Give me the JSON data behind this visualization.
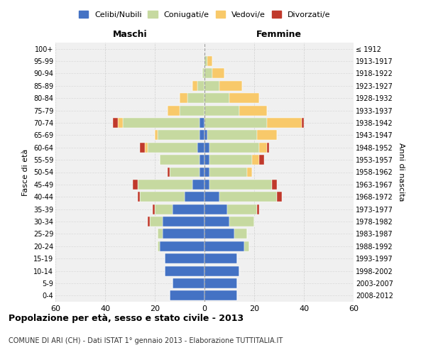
{
  "age_groups": [
    "0-4",
    "5-9",
    "10-14",
    "15-19",
    "20-24",
    "25-29",
    "30-34",
    "35-39",
    "40-44",
    "45-49",
    "50-54",
    "55-59",
    "60-64",
    "65-69",
    "70-74",
    "75-79",
    "80-84",
    "85-89",
    "90-94",
    "95-99",
    "100+"
  ],
  "birth_years": [
    "2008-2012",
    "2003-2007",
    "1998-2002",
    "1993-1997",
    "1988-1992",
    "1983-1987",
    "1978-1982",
    "1973-1977",
    "1968-1972",
    "1963-1967",
    "1958-1962",
    "1953-1957",
    "1948-1952",
    "1943-1947",
    "1938-1942",
    "1933-1937",
    "1928-1932",
    "1923-1927",
    "1918-1922",
    "1913-1917",
    "≤ 1912"
  ],
  "male": {
    "celibi": [
      14,
      13,
      16,
      16,
      18,
      17,
      17,
      13,
      8,
      5,
      2,
      2,
      3,
      2,
      2,
      0,
      0,
      0,
      0,
      0,
      0
    ],
    "coniugati": [
      0,
      0,
      0,
      0,
      1,
      2,
      5,
      7,
      18,
      22,
      12,
      16,
      20,
      17,
      31,
      10,
      7,
      3,
      1,
      0,
      0
    ],
    "vedovi": [
      0,
      0,
      0,
      0,
      0,
      0,
      0,
      0,
      0,
      0,
      0,
      0,
      1,
      1,
      2,
      5,
      3,
      2,
      0,
      0,
      0
    ],
    "divorziati": [
      0,
      0,
      0,
      0,
      0,
      0,
      1,
      1,
      1,
      2,
      1,
      0,
      2,
      0,
      2,
      0,
      0,
      0,
      0,
      0,
      0
    ]
  },
  "female": {
    "celibi": [
      13,
      13,
      14,
      13,
      16,
      12,
      10,
      9,
      6,
      2,
      2,
      2,
      2,
      1,
      0,
      0,
      0,
      0,
      0,
      0,
      0
    ],
    "coniugati": [
      0,
      0,
      0,
      0,
      2,
      5,
      10,
      12,
      23,
      25,
      15,
      17,
      20,
      20,
      25,
      14,
      10,
      6,
      3,
      1,
      0
    ],
    "vedovi": [
      0,
      0,
      0,
      0,
      0,
      0,
      0,
      0,
      0,
      0,
      2,
      3,
      3,
      8,
      14,
      11,
      12,
      9,
      5,
      2,
      0
    ],
    "divorziati": [
      0,
      0,
      0,
      0,
      0,
      0,
      0,
      1,
      2,
      2,
      0,
      2,
      1,
      0,
      1,
      0,
      0,
      0,
      0,
      0,
      0
    ]
  },
  "colors": {
    "celibi": "#4472C4",
    "coniugati": "#C6D9A0",
    "vedovi": "#F8C96A",
    "divorziati": "#C0392B"
  },
  "xlim": 60,
  "title": "Popolazione per età, sesso e stato civile - 2013",
  "subtitle": "COMUNE DI ARI (CH) - Dati ISTAT 1° gennaio 2013 - Elaborazione TUTTITALIA.IT",
  "xlabel_left": "Maschi",
  "xlabel_right": "Femmine",
  "ylabel_left": "Fasce di età",
  "ylabel_right": "Anni di nascita",
  "legend_labels": [
    "Celibi/Nubili",
    "Coniugati/e",
    "Vedovi/e",
    "Divorzati/e"
  ],
  "background_color": "#f0f0f0",
  "grid_color": "#cccccc"
}
